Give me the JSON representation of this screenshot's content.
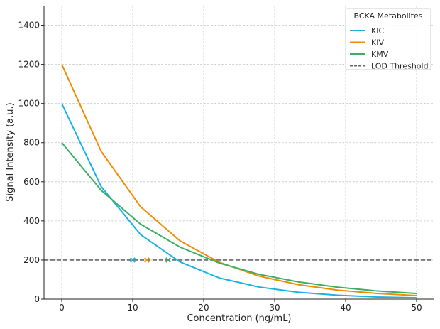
{
  "chart_data": {
    "type": "line",
    "title": "",
    "xlabel": "Concentration (ng/mL)",
    "ylabel": "Signal Intensity (a.u.)",
    "xlim": [
      -2.5,
      52.5
    ],
    "ylim": [
      0,
      1500
    ],
    "xticks": [
      0,
      10,
      20,
      30,
      40,
      50
    ],
    "yticks": [
      0,
      200,
      400,
      600,
      800,
      1000,
      1200,
      1400
    ],
    "grid": true,
    "legend": {
      "title": "BCKA Metabolites",
      "placement": "top-right",
      "entries": [
        "KIC",
        "KIV",
        "KMV",
        "LOD Threshold"
      ]
    },
    "series": [
      {
        "name": "KIC",
        "color": "#1ab2e6",
        "x": [
          0,
          5.56,
          11.11,
          16.67,
          22.22,
          27.78,
          33.33,
          38.89,
          44.44,
          50
        ],
        "values": [
          1000,
          575,
          330,
          190,
          108,
          62,
          35,
          20,
          11,
          7
        ]
      },
      {
        "name": "KIV",
        "color": "#f08c00",
        "x": [
          0,
          5.56,
          11.11,
          16.67,
          22.22,
          27.78,
          33.33,
          38.89,
          44.44,
          50
        ],
        "values": [
          1200,
          755,
          472,
          298,
          188,
          118,
          74,
          46,
          29,
          18
        ]
      },
      {
        "name": "KMV",
        "color": "#3cae64",
        "x": [
          0,
          5.56,
          11.11,
          16.67,
          22.22,
          27.78,
          33.33,
          38.89,
          44.44,
          50
        ],
        "values": [
          800,
          556,
          383,
          266,
          184,
          127,
          88,
          61,
          42,
          29
        ]
      }
    ],
    "threshold": {
      "name": "LOD Threshold",
      "value": 200,
      "color": "#666666",
      "style": "dashed"
    },
    "lod_markers": [
      {
        "series": "KIC",
        "x": 10,
        "y": 200,
        "color": "#1ab2e6"
      },
      {
        "series": "KIV",
        "x": 12,
        "y": 200,
        "color": "#f08c00"
      },
      {
        "series": "KMV",
        "x": 15,
        "y": 200,
        "color": "#3cae64"
      }
    ]
  }
}
